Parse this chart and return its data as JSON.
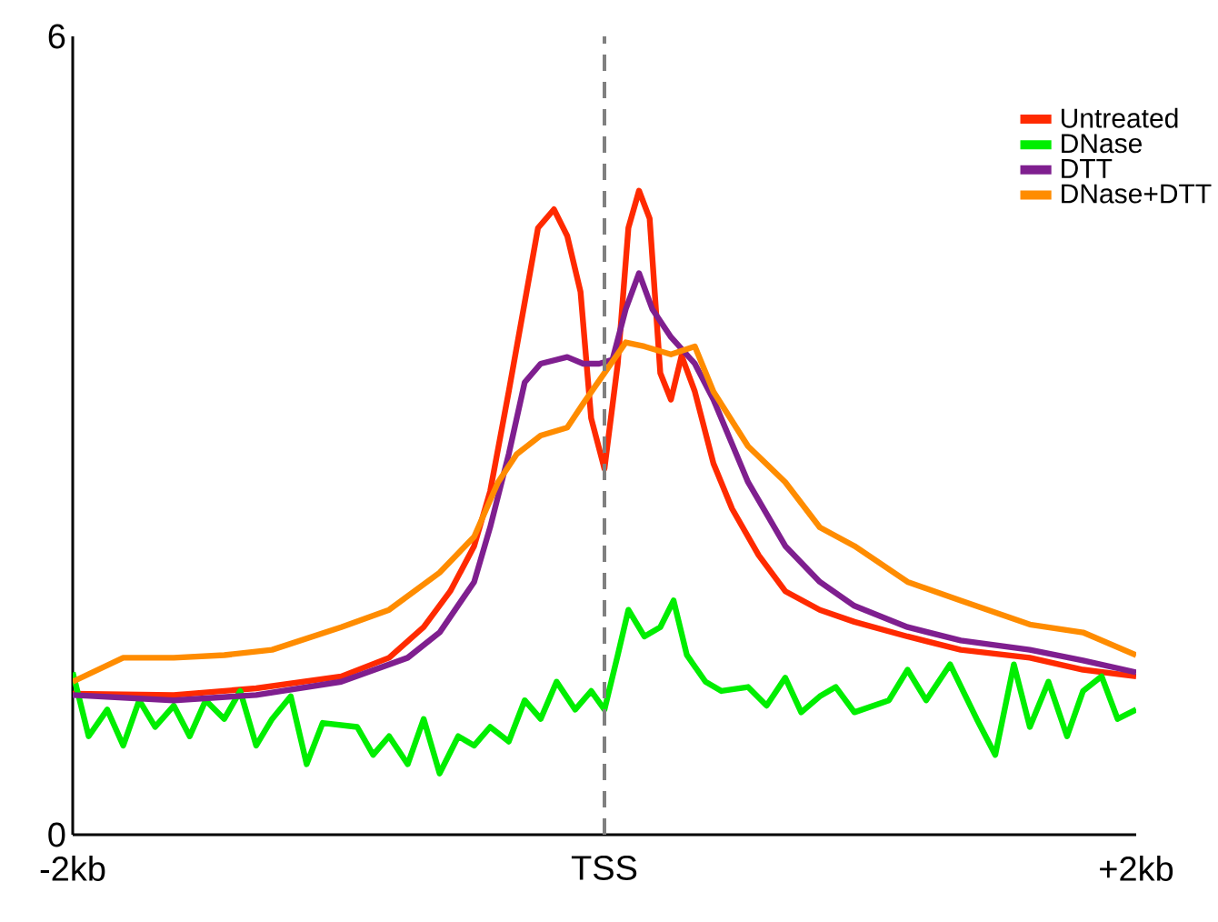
{
  "chart_data": {
    "type": "line",
    "xlim": [
      -2,
      2
    ],
    "ylim": [
      0,
      6
    ],
    "xticks": [
      {
        "value": -2,
        "label": "-2kb"
      },
      {
        "value": 0,
        "label": "TSS"
      },
      {
        "value": 2,
        "label": "+2kb"
      }
    ],
    "yticks": [
      0,
      6
    ],
    "legend": "top right",
    "line_style": "solid",
    "ref_lines": [
      {
        "axis": "x",
        "value": 0,
        "color": "#808080",
        "line_style": "dashed"
      }
    ],
    "series": [
      {
        "name": "Untreated",
        "color": "#ff2a00",
        "x": [
          -2.0,
          -1.62,
          -1.31,
          -0.99,
          -0.81,
          -0.68,
          -0.58,
          -0.49,
          -0.43,
          -0.36,
          -0.3,
          -0.25,
          -0.19,
          -0.14,
          -0.09,
          -0.05,
          0.0,
          0.05,
          0.09,
          0.13,
          0.17,
          0.21,
          0.25,
          0.29,
          0.34,
          0.41,
          0.48,
          0.58,
          0.68,
          0.81,
          0.94,
          1.14,
          1.34,
          1.6,
          1.8,
          2.0
        ],
        "values": [
          1.06,
          1.05,
          1.1,
          1.19,
          1.33,
          1.56,
          1.83,
          2.17,
          2.58,
          3.33,
          4.0,
          4.56,
          4.7,
          4.5,
          4.08,
          3.13,
          2.75,
          3.54,
          4.56,
          4.84,
          4.63,
          3.47,
          3.27,
          3.6,
          3.33,
          2.79,
          2.45,
          2.1,
          1.83,
          1.69,
          1.6,
          1.49,
          1.39,
          1.33,
          1.24,
          1.19
        ]
      },
      {
        "name": "DNase",
        "color": "#00ee00",
        "x": [
          -2.0,
          -1.94,
          -1.87,
          -1.81,
          -1.75,
          -1.69,
          -1.62,
          -1.56,
          -1.5,
          -1.43,
          -1.37,
          -1.31,
          -1.25,
          -1.18,
          -1.12,
          -1.06,
          -0.93,
          -0.87,
          -0.81,
          -0.74,
          -0.68,
          -0.62,
          -0.55,
          -0.49,
          -0.43,
          -0.36,
          -0.3,
          -0.24,
          -0.18,
          -0.11,
          -0.05,
          0.0,
          0.05,
          0.09,
          0.15,
          0.21,
          0.26,
          0.31,
          0.38,
          0.44,
          0.54,
          0.61,
          0.68,
          0.74,
          0.81,
          0.87,
          0.94,
          1.07,
          1.14,
          1.21,
          1.3,
          1.4,
          1.47,
          1.54,
          1.6,
          1.67,
          1.74,
          1.8,
          1.87,
          1.93,
          2.0
        ],
        "values": [
          1.22,
          0.74,
          0.94,
          0.67,
          1.01,
          0.81,
          0.97,
          0.74,
          1.01,
          0.87,
          1.08,
          0.67,
          0.87,
          1.04,
          0.53,
          0.84,
          0.81,
          0.6,
          0.74,
          0.53,
          0.87,
          0.46,
          0.74,
          0.67,
          0.81,
          0.7,
          1.01,
          0.87,
          1.15,
          0.94,
          1.08,
          0.94,
          1.35,
          1.69,
          1.49,
          1.56,
          1.76,
          1.35,
          1.15,
          1.08,
          1.11,
          0.97,
          1.18,
          0.92,
          1.04,
          1.11,
          0.92,
          1.01,
          1.24,
          1.01,
          1.28,
          0.87,
          0.6,
          1.28,
          0.81,
          1.15,
          0.74,
          1.08,
          1.19,
          0.87,
          0.94
        ]
      },
      {
        "name": "DTT",
        "color": "#7f1f8f",
        "x": [
          -2.0,
          -1.62,
          -1.31,
          -0.99,
          -0.74,
          -0.62,
          -0.49,
          -0.43,
          -0.36,
          -0.3,
          -0.24,
          -0.14,
          -0.08,
          -0.02,
          0.03,
          0.08,
          0.13,
          0.18,
          0.25,
          0.34,
          0.41,
          0.54,
          0.68,
          0.81,
          0.94,
          1.14,
          1.34,
          1.6,
          1.8,
          2.0
        ],
        "values": [
          1.05,
          1.01,
          1.05,
          1.15,
          1.33,
          1.52,
          1.9,
          2.31,
          2.86,
          3.4,
          3.54,
          3.59,
          3.54,
          3.54,
          3.57,
          3.95,
          4.22,
          3.95,
          3.74,
          3.54,
          3.27,
          2.65,
          2.17,
          1.9,
          1.72,
          1.56,
          1.46,
          1.39,
          1.31,
          1.22
        ]
      },
      {
        "name": "DNase+DTT",
        "color": "#ff8c00",
        "x": [
          -2.0,
          -1.81,
          -1.62,
          -1.43,
          -1.25,
          -0.99,
          -0.81,
          -0.62,
          -0.49,
          -0.4,
          -0.33,
          -0.24,
          -0.14,
          -0.08,
          0.0,
          0.08,
          0.15,
          0.25,
          0.34,
          0.41,
          0.54,
          0.68,
          0.81,
          0.94,
          1.14,
          1.34,
          1.6,
          1.8,
          2.0
        ],
        "values": [
          1.15,
          1.33,
          1.33,
          1.35,
          1.39,
          1.56,
          1.69,
          1.97,
          2.24,
          2.65,
          2.86,
          3.0,
          3.06,
          3.24,
          3.47,
          3.7,
          3.67,
          3.61,
          3.67,
          3.33,
          2.92,
          2.65,
          2.31,
          2.17,
          1.9,
          1.76,
          1.58,
          1.52,
          1.35
        ]
      }
    ]
  }
}
